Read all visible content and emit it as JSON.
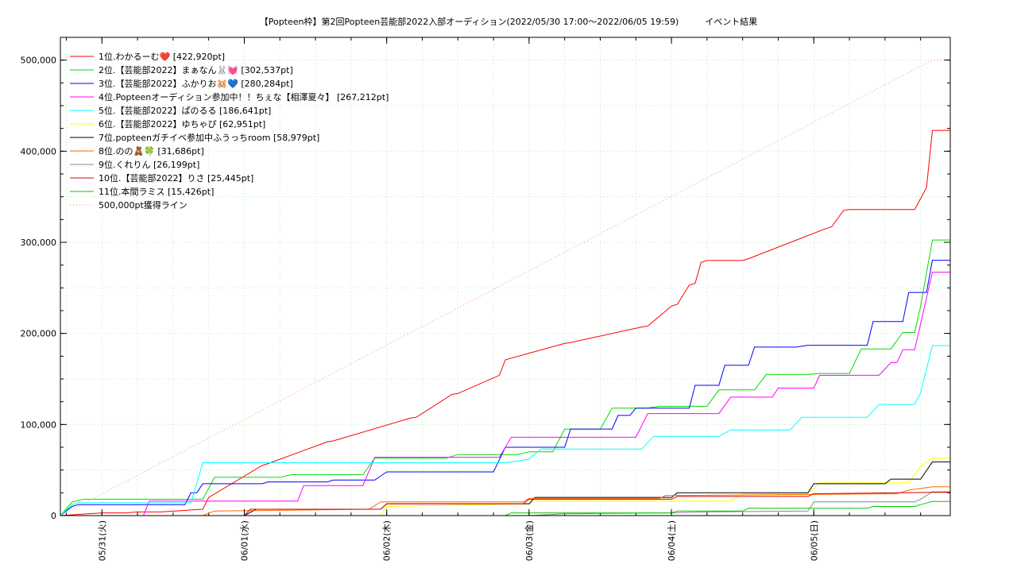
{
  "chart_data": {
    "type": "line",
    "title": "【Popteen枠】第2回Popteen芸能部2022入部オーディション(2022/05/30 17:00〜2022/06/05 19:59)　　　イベント結果",
    "xlabel": "",
    "ylabel": "",
    "ylim": [
      0,
      525000
    ],
    "xlim": [
      "2022-05-30 17:00",
      "2022-06-05 23:00"
    ],
    "grid": true,
    "legend_position": "top-left",
    "x_tick_labels": [
      "05/31(火)",
      "06/01(水)",
      "06/02(木)",
      "06/03(金)",
      "06/04(土)",
      "06/05(日)"
    ],
    "x_ticks": [
      "2022-05-31 00:00",
      "2022-06-01 00:00",
      "2022-06-02 00:00",
      "2022-06-03 00:00",
      "2022-06-04 00:00",
      "2022-06-05 00:00"
    ],
    "y_ticks": [
      0,
      100000,
      200000,
      300000,
      400000,
      500000
    ],
    "y_tick_labels": [
      "0",
      "100,000",
      "200,000",
      "300,000",
      "400,000",
      "500,000"
    ],
    "series": [
      {
        "name": "1位.わかるーむ❤️ [422,920pt]",
        "color": "#ff0000",
        "x": [
          "2022-05-30 17:00",
          "2022-05-31 00:00",
          "2022-05-31 04:00",
          "2022-05-31 06:00",
          "2022-05-31 10:00",
          "2022-05-31 17:00",
          "2022-05-31 18:00",
          "2022-06-01 03:00",
          "2022-06-01 04:00",
          "2022-06-01 14:00",
          "2022-06-01 15:00",
          "2022-06-02 04:00",
          "2022-06-02 05:00",
          "2022-06-02 11:00",
          "2022-06-02 12:00",
          "2022-06-02 19:00",
          "2022-06-02 20:00",
          "2022-06-03 06:00",
          "2022-06-03 07:00",
          "2022-06-03 19:00",
          "2022-06-03 20:00",
          "2022-06-04 00:00",
          "2022-06-04 01:00",
          "2022-06-04 03:00",
          "2022-06-04 04:00",
          "2022-06-04 05:00",
          "2022-06-04 06:00",
          "2022-06-04 12:00",
          "2022-06-04 13:00",
          "2022-06-05 02:00",
          "2022-06-05 03:00",
          "2022-06-05 05:00",
          "2022-06-05 06:00",
          "2022-06-05 17:00",
          "2022-06-05 19:00",
          "2022-06-05 19:59",
          "2022-06-05 23:00"
        ],
        "values": [
          0,
          3000,
          3000,
          4000,
          4000,
          7000,
          20000,
          55000,
          57000,
          81000,
          82000,
          107000,
          108000,
          133000,
          134000,
          154000,
          171000,
          189000,
          190000,
          207000,
          208000,
          230000,
          232000,
          253000,
          255000,
          278000,
          280000,
          280000,
          282000,
          315000,
          317000,
          335000,
          336000,
          336000,
          360000,
          422920,
          422920
        ]
      },
      {
        "name": "2位.【芸能部2022】まぁなん🐰💓 [302,537pt]",
        "color": "#00dd00",
        "x": [
          "2022-05-30 17:00",
          "2022-05-30 19:00",
          "2022-05-30 21:00",
          "2022-05-31 17:00",
          "2022-05-31 19:00",
          "2022-06-01 06:00",
          "2022-06-01 08:00",
          "2022-06-01 20:00",
          "2022-06-01 22:00",
          "2022-06-02 10:00",
          "2022-06-02 12:00",
          "2022-06-02 22:00",
          "2022-06-03 00:00",
          "2022-06-03 04:00",
          "2022-06-03 06:00",
          "2022-06-03 12:00",
          "2022-06-03 14:00",
          "2022-06-03 20:00",
          "2022-06-03 22:00",
          "2022-06-04 06:00",
          "2022-06-04 08:00",
          "2022-06-04 14:00",
          "2022-06-04 16:00",
          "2022-06-04 23:00",
          "2022-06-05 01:00",
          "2022-06-05 06:00",
          "2022-06-05 08:00",
          "2022-06-05 13:00",
          "2022-06-05 15:00",
          "2022-06-05 17:00",
          "2022-06-05 18:00",
          "2022-06-05 19:59",
          "2022-06-05 23:00"
        ],
        "values": [
          0,
          15000,
          18000,
          18000,
          42000,
          42000,
          45000,
          45000,
          63000,
          63000,
          67000,
          67000,
          70000,
          70000,
          95000,
          95000,
          118000,
          118000,
          120000,
          120000,
          138000,
          138000,
          155000,
          155000,
          156000,
          156000,
          183000,
          183000,
          201000,
          201000,
          230000,
          302537,
          302537
        ]
      },
      {
        "name": "3位.【芸能部2022】ふかりお🐹💙 [280,284pt]",
        "color": "#0000ff",
        "x": [
          "2022-05-30 17:00",
          "2022-05-30 19:00",
          "2022-05-30 20:00",
          "2022-05-31 14:00",
          "2022-05-31 15:00",
          "2022-05-31 16:00",
          "2022-05-31 17:00",
          "2022-06-01 03:00",
          "2022-06-01 04:00",
          "2022-06-01 14:00",
          "2022-06-01 15:00",
          "2022-06-01 22:00",
          "2022-06-02 00:00",
          "2022-06-02 18:00",
          "2022-06-02 20:00",
          "2022-06-03 06:00",
          "2022-06-03 07:00",
          "2022-06-03 14:00",
          "2022-06-03 15:00",
          "2022-06-03 17:00",
          "2022-06-03 18:00",
          "2022-06-04 03:00",
          "2022-06-04 04:00",
          "2022-06-04 08:00",
          "2022-06-04 09:00",
          "2022-06-04 13:00",
          "2022-06-04 14:00",
          "2022-06-04 21:00",
          "2022-06-04 23:00",
          "2022-06-05 09:00",
          "2022-06-05 10:00",
          "2022-06-05 15:00",
          "2022-06-05 16:00",
          "2022-06-05 19:00",
          "2022-06-05 19:59",
          "2022-06-05 23:00"
        ],
        "values": [
          0,
          10000,
          12000,
          12000,
          25000,
          25000,
          35000,
          35000,
          37000,
          37000,
          39000,
          39000,
          48000,
          48000,
          75000,
          75000,
          95000,
          95000,
          110000,
          110000,
          118000,
          118000,
          143000,
          143000,
          165000,
          165000,
          185000,
          185000,
          187000,
          187000,
          213000,
          213000,
          245000,
          245000,
          280284,
          280284
        ]
      },
      {
        "name": "4位.Popteenオーディション参加中！！ちぇな【相澤夏々】 [267,212pt]",
        "color": "#ff00ff",
        "x": [
          "2022-05-30 17:00",
          "2022-05-31 07:00",
          "2022-05-31 08:00",
          "2022-06-01 09:00",
          "2022-06-01 10:00",
          "2022-06-01 20:00",
          "2022-06-01 22:00",
          "2022-06-02 19:00",
          "2022-06-02 21:00",
          "2022-06-03 18:00",
          "2022-06-03 20:00",
          "2022-06-04 08:00",
          "2022-06-04 10:00",
          "2022-06-04 17:00",
          "2022-06-04 18:00",
          "2022-06-05 00:00",
          "2022-06-05 01:00",
          "2022-06-05 11:00",
          "2022-06-05 13:00",
          "2022-06-05 14:00",
          "2022-06-05 15:00",
          "2022-06-05 17:00",
          "2022-06-05 19:59",
          "2022-06-05 23:00"
        ],
        "values": [
          0,
          0,
          16000,
          16000,
          33000,
          33000,
          64000,
          64000,
          86000,
          86000,
          112000,
          112000,
          130000,
          130000,
          140000,
          140000,
          154000,
          154000,
          168000,
          168000,
          182000,
          182000,
          267212,
          267212
        ]
      },
      {
        "name": "5位.【芸能部2022】ぱのるる [186,641pt]",
        "color": "#00ffff",
        "x": [
          "2022-05-30 17:00",
          "2022-05-30 19:00",
          "2022-05-30 20:00",
          "2022-05-31 15:00",
          "2022-05-31 17:00",
          "2022-06-02 20:00",
          "2022-06-03 00:00",
          "2022-06-03 02:00",
          "2022-06-03 19:00",
          "2022-06-03 21:00",
          "2022-06-04 08:00",
          "2022-06-04 10:00",
          "2022-06-04 20:00",
          "2022-06-04 22:00",
          "2022-06-05 09:00",
          "2022-06-05 11:00",
          "2022-06-05 17:00",
          "2022-06-05 18:00",
          "2022-06-05 19:59",
          "2022-06-05 23:00"
        ],
        "values": [
          0,
          12000,
          14000,
          14000,
          58000,
          58000,
          62000,
          73000,
          73000,
          87000,
          87000,
          94000,
          94000,
          108000,
          108000,
          122000,
          122000,
          135000,
          186641,
          186641
        ]
      },
      {
        "name": "6位.【芸能部2022】ゆちゃぴ [62,951pt]",
        "color": "#ffff00",
        "x": [
          "2022-05-30 17:00",
          "2022-06-01 23:00",
          "2022-06-02 00:00",
          "2022-06-03 00:00",
          "2022-06-03 01:00",
          "2022-06-04 10:00",
          "2022-06-04 12:00",
          "2022-06-04 23:00",
          "2022-06-05 01:00",
          "2022-06-05 16:00",
          "2022-06-05 18:00",
          "2022-06-05 19:59",
          "2022-06-05 23:00"
        ],
        "values": [
          0,
          0,
          10000,
          13000,
          16000,
          16000,
          24000,
          24000,
          36000,
          36000,
          54000,
          62951,
          62951
        ]
      },
      {
        "name": "7位.popteenガチイベ参加中ふうっちroom [58,979pt]",
        "color": "#000000",
        "x": [
          "2022-05-30 17:00",
          "2022-06-01 00:00",
          "2022-06-01 02:00",
          "2022-06-01 23:00",
          "2022-06-02 00:00",
          "2022-06-03 00:00",
          "2022-06-03 01:00",
          "2022-06-04 00:00",
          "2022-06-04 01:00",
          "2022-06-04 23:00",
          "2022-06-05 00:00",
          "2022-06-05 12:00",
          "2022-06-05 13:00",
          "2022-06-05 18:00",
          "2022-06-05 19:59",
          "2022-06-05 23:00"
        ],
        "values": [
          0,
          0,
          7000,
          7000,
          13000,
          13000,
          20000,
          20000,
          25000,
          25000,
          35000,
          35000,
          40000,
          40000,
          58979,
          58979
        ]
      },
      {
        "name": "8位.のの🧸🍀 [31,686pt]",
        "color": "#ff6600",
        "x": [
          "2022-05-30 17:00",
          "2022-05-31 17:00",
          "2022-05-31 19:00",
          "2022-06-01 21:00",
          "2022-06-01 23:00",
          "2022-06-02 23:00",
          "2022-06-03 00:00",
          "2022-06-03 22:00",
          "2022-06-03 23:00",
          "2022-06-05 14:00",
          "2022-06-05 16:00",
          "2022-06-05 19:59",
          "2022-06-05 23:00"
        ],
        "values": [
          0,
          0,
          5000,
          7000,
          15000,
          15000,
          19000,
          19000,
          22000,
          24000,
          28000,
          31686,
          31686
        ]
      },
      {
        "name": "9位.くれりん [26,199pt]",
        "color": "#888888",
        "x": [
          "2022-05-30 17:00",
          "2022-06-03 00:00",
          "2022-06-03 06:00",
          "2022-06-04 00:00",
          "2022-06-04 06:00",
          "2022-06-04 23:00",
          "2022-06-05 00:00",
          "2022-06-05 17:00",
          "2022-06-05 18:00",
          "2022-06-05 19:59",
          "2022-06-05 23:00"
        ],
        "values": [
          0,
          0,
          2000,
          3000,
          4000,
          5000,
          15000,
          15000,
          18000,
          26199,
          26199
        ]
      },
      {
        "name": "10位.【芸能部2022】りさ [25,445pt]",
        "color": "#dd0000",
        "x": [
          "2022-05-30 17:00",
          "2022-06-01 00:00",
          "2022-06-01 01:00",
          "2022-06-01 23:00",
          "2022-06-02 00:00",
          "2022-06-02 23:00",
          "2022-06-03 00:00",
          "2022-06-04 00:00",
          "2022-06-04 01:00",
          "2022-06-04 23:00",
          "2022-06-05 00:00",
          "2022-06-05 19:59",
          "2022-06-05 23:00"
        ],
        "values": [
          0,
          0,
          7000,
          7000,
          13000,
          13000,
          18000,
          18000,
          21000,
          21000,
          24000,
          25445,
          25445
        ]
      },
      {
        "name": "11位.本間ラミス [15,426pt]",
        "color": "#00cc00",
        "x": [
          "2022-05-30 17:00",
          "2022-06-02 20:00",
          "2022-06-02 21:00",
          "2022-06-04 00:00",
          "2022-06-04 01:00",
          "2022-06-04 12:00",
          "2022-06-04 13:00",
          "2022-06-05 09:00",
          "2022-06-05 10:00",
          "2022-06-05 17:00",
          "2022-06-05 18:00",
          "2022-06-05 19:59",
          "2022-06-05 23:00"
        ],
        "values": [
          0,
          0,
          3000,
          3000,
          5000,
          5000,
          8000,
          8000,
          10000,
          10000,
          12000,
          15426,
          15426
        ]
      },
      {
        "name": "500,000pt獲得ライン",
        "color": "#ff8888",
        "dashed": true,
        "x": [
          "2022-05-30 17:00",
          "2022-06-05 19:59",
          "2022-06-05 23:00"
        ],
        "values": [
          0,
          500000,
          500000
        ]
      }
    ]
  }
}
